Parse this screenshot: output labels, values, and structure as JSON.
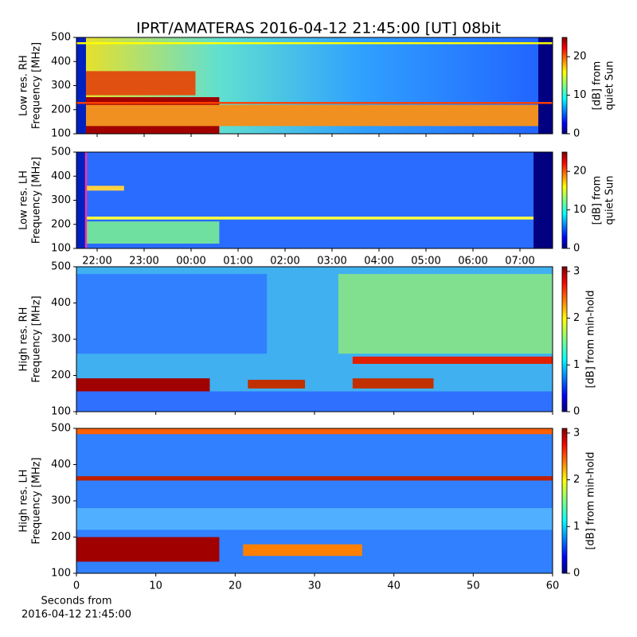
{
  "chart_data": [
    {
      "type": "heatmap",
      "title": "IPRT/AMATERAS 2016-04-12 21:45:00 [UT]   08bit",
      "ylabel": [
        "Low res. RH",
        "Frequency [MHz]"
      ],
      "ylim": [
        100,
        500
      ],
      "yticks": [
        100,
        200,
        300,
        400,
        500
      ],
      "colorbar_label": [
        "[dB] from",
        "quiet Sun"
      ],
      "clim": [
        0,
        25
      ],
      "cticks": [
        0,
        10,
        20
      ]
    },
    {
      "type": "heatmap",
      "ylabel": [
        "Low res. LH",
        "Frequency [MHz]"
      ],
      "ylim": [
        100,
        500
      ],
      "yticks": [
        100,
        200,
        300,
        400,
        500
      ],
      "xticks": [
        "22:00",
        "23:00",
        "00:00",
        "01:00",
        "02:00",
        "03:00",
        "04:00",
        "05:00",
        "06:00",
        "07:00"
      ],
      "colorbar_label": [
        "[dB] from",
        "quiet Sun"
      ],
      "clim": [
        0,
        25
      ],
      "cticks": [
        0,
        10,
        20
      ]
    },
    {
      "type": "heatmap",
      "ylabel": [
        "High res. RH",
        "Frequency [MHz]"
      ],
      "ylim": [
        100,
        500
      ],
      "yticks": [
        100,
        200,
        300,
        400,
        500
      ],
      "colorbar_label": [
        "[dB] from min-hold"
      ],
      "clim": [
        0,
        3.1
      ],
      "cticks": [
        0,
        1,
        2,
        3
      ]
    },
    {
      "type": "heatmap",
      "ylabel": [
        "High res. LH",
        "Frequency [MHz]"
      ],
      "ylim": [
        100,
        500
      ],
      "yticks": [
        100,
        200,
        300,
        400,
        500
      ],
      "xlabel": [
        "Seconds from",
        "2016-04-12 21:45:00"
      ],
      "xlim": [
        0,
        60
      ],
      "xticks": [
        0,
        10,
        20,
        30,
        40,
        50,
        60
      ],
      "colorbar_label": [
        "[dB] from min-hold"
      ],
      "clim": [
        0,
        3.1
      ],
      "cticks": [
        0,
        1,
        2,
        3
      ]
    }
  ]
}
